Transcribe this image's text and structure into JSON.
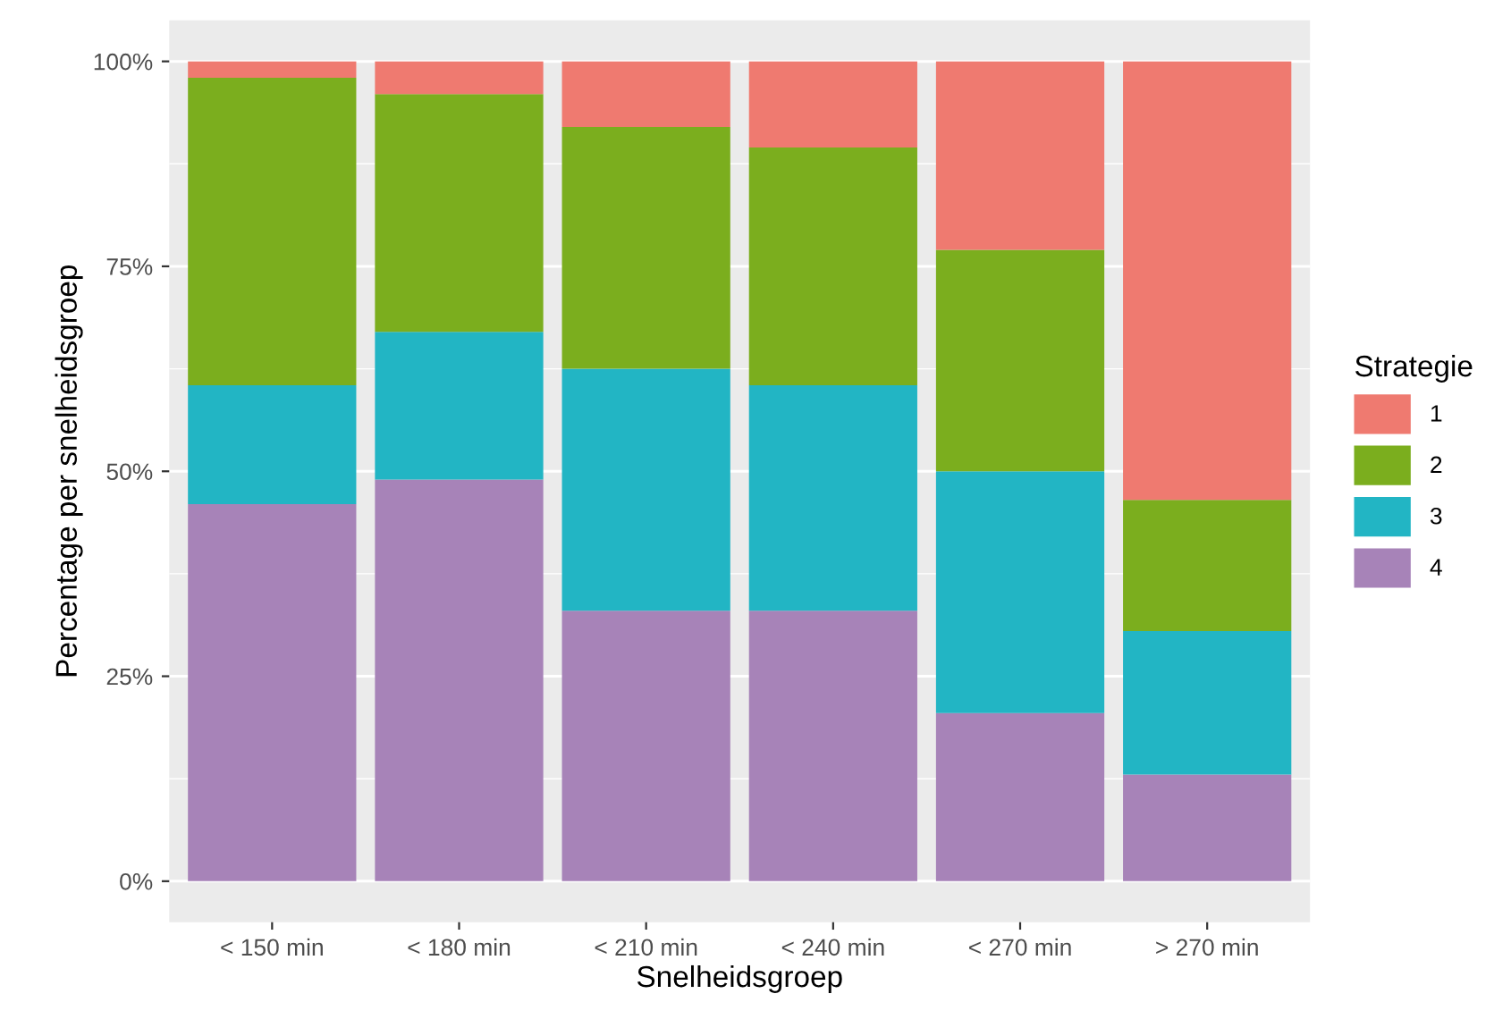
{
  "chart_data": {
    "type": "bar",
    "stacked": true,
    "xlabel": "Snelheidsgroep",
    "ylabel": "Percentage per snelheidsgroep",
    "legend_title": "Strategie",
    "categories": [
      "< 150 min",
      "< 180 min",
      "< 210 min",
      "< 240 min",
      "< 270 min",
      "> 270 min"
    ],
    "series": [
      {
        "name": "4",
        "color": "#a783b8",
        "values": [
          46,
          49,
          33,
          33,
          20.5,
          13
        ]
      },
      {
        "name": "3",
        "color": "#22b5c4",
        "values": [
          14.5,
          18,
          29.5,
          27.5,
          29.5,
          17.5
        ]
      },
      {
        "name": "2",
        "color": "#7bae1e",
        "values": [
          37.5,
          29,
          29.5,
          29,
          27,
          16
        ]
      },
      {
        "name": "1",
        "color": "#ef7a70",
        "values": [
          2,
          4,
          8,
          10.5,
          23,
          53.5
        ]
      }
    ],
    "ylim": [
      -5,
      105
    ],
    "yticks": [
      {
        "value": 0,
        "label": "0%"
      },
      {
        "value": 25,
        "label": "25%"
      },
      {
        "value": 50,
        "label": "50%"
      },
      {
        "value": 75,
        "label": "75%"
      },
      {
        "value": 100,
        "label": "100%"
      }
    ],
    "grid": "y",
    "legend": "right"
  }
}
